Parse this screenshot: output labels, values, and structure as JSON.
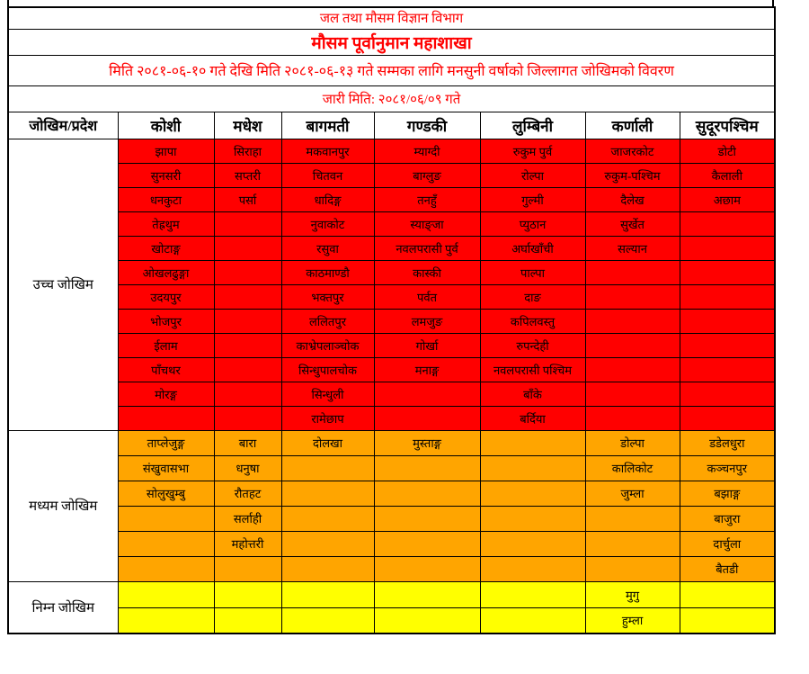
{
  "titles": {
    "department": "जल तथा मौसम विज्ञान विभाग",
    "division": "मौसम पूर्वानुमान महाशाखा",
    "period": "मिति २०८१-०६-१० गते देखि मिति २०८१-०६-१३ गते सम्मका लागि मनसुनी वर्षाको जिल्लागत जोखिमको विवरण",
    "issued": "जारी मिति: २०८१/०६/०९ गते"
  },
  "table": {
    "corner_header": "जोखिम/प्रदेश",
    "provinces": [
      "कोशी",
      "मधेश",
      "बागमती",
      "गण्डकी",
      "लुम्बिनी",
      "कर्णाली",
      "सुदूरपश्चिम"
    ],
    "sections": [
      {
        "label": "उच्च जोखिम",
        "risk": "high",
        "color": "#FF0000",
        "row_count": 12,
        "columns": [
          [
            "झापा",
            "सुनसरी",
            "धनकुटा",
            "तेह्रथुम",
            "खोटाङ्ग",
            "ओखलढुङ्गा",
            "उदयपुर",
            "भोजपुर",
            "ईलाम",
            "पाँचथर",
            "मोरङ्ग",
            ""
          ],
          [
            "सिराहा",
            "सप्तरी",
            "पर्सा",
            "",
            "",
            "",
            "",
            "",
            "",
            "",
            "",
            ""
          ],
          [
            "मकवानपुर",
            "चितवन",
            "धादिङ्ग",
            "नुवाकोट",
            "रसुवा",
            "काठमाण्डौ",
            "भक्तपुर",
            "ललितपुर",
            "काभ्रेपलाञ्चोक",
            "सिन्धुपालचोक",
            "सिन्धुली",
            "रामेछाप"
          ],
          [
            "म्याग्दी",
            "बाग्लुङ",
            "तनहुँ",
            "स्याङ्जा",
            "नवलपरासी पुर्व",
            "कास्की",
            "पर्वत",
            "लमजुङ",
            "गोर्खा",
            "मनाङ्ग",
            "",
            ""
          ],
          [
            "रुकुम पुर्व",
            "रोल्पा",
            "गुल्मी",
            "प्युठान",
            "अर्घाखाँची",
            "पाल्पा",
            "दाङ",
            "कपिलवस्तु",
            "रुपन्देही",
            "नवलपरासी पश्चिम",
            "बाँके",
            "बर्दिया"
          ],
          [
            "जाजरकोट",
            "रुकुम-पश्चिम",
            "दैलेख",
            "सुर्खेत",
            "सल्यान",
            "",
            "",
            "",
            "",
            "",
            "",
            ""
          ],
          [
            "डोटी",
            "कैलाली",
            "अछाम",
            "",
            "",
            "",
            "",
            "",
            "",
            "",
            "",
            ""
          ]
        ]
      },
      {
        "label": "मध्यम जोखिम",
        "risk": "medium",
        "color": "#FFA500",
        "row_count": 6,
        "columns": [
          [
            "ताप्लेजुङ्ग",
            "संखुवासभा",
            "सोलुखुम्बु",
            "",
            "",
            ""
          ],
          [
            "बारा",
            "धनुषा",
            "रौतहट",
            "सर्लाही",
            "महोत्तरी",
            ""
          ],
          [
            "दोलखा",
            "",
            "",
            "",
            "",
            ""
          ],
          [
            "मुस्ताङ्ग",
            "",
            "",
            "",
            "",
            ""
          ],
          [
            "",
            "",
            "",
            "",
            "",
            ""
          ],
          [
            "डोल्पा",
            "कालिकोट",
            "जुम्ला",
            "",
            "",
            ""
          ],
          [
            "डडेलधुरा",
            "कञ्चनपुर",
            "बझाङ्ग",
            "बाजुरा",
            "दार्चुला",
            "बैतडी"
          ]
        ]
      },
      {
        "label": "निम्न जोखिम",
        "risk": "low",
        "color": "#FFFF00",
        "row_count": 2,
        "columns": [
          [
            "",
            ""
          ],
          [
            "",
            ""
          ],
          [
            "",
            ""
          ],
          [
            "",
            ""
          ],
          [
            "",
            ""
          ],
          [
            "मुगु",
            "हुम्ला"
          ],
          [
            "",
            ""
          ]
        ]
      }
    ]
  },
  "colors": {
    "high_risk": "#FF0000",
    "medium_risk": "#FFA500",
    "low_risk": "#FFFF00",
    "title_text": "#FF0000",
    "border": "#000000",
    "background": "#FFFFFF"
  }
}
